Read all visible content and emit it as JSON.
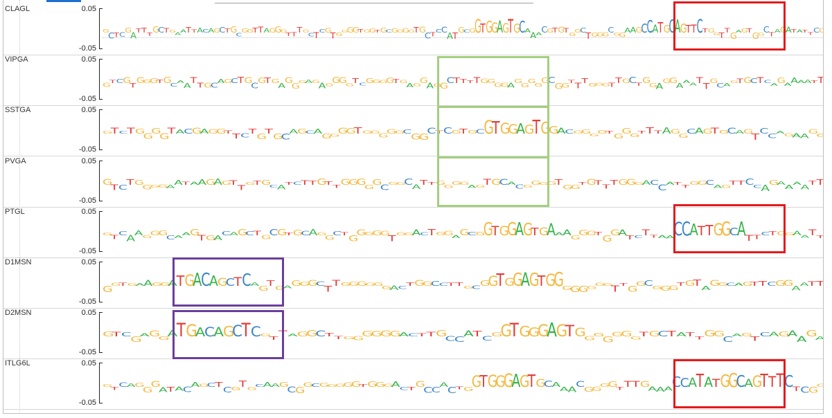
{
  "chart_data": {
    "type": "sequence-logo",
    "y_tick_top": "0.05",
    "y_tick_bottom": "-0.05",
    "ylim": [
      -0.05,
      0.05
    ],
    "nucleotide_colors": {
      "A": "#35b34a",
      "C": "#3a84c9",
      "G": "#f4b942",
      "T": "#e53935"
    },
    "tracks": [
      {
        "name": "CLAGL",
        "sequence": "GCTCGATTTGCTGAATTACAGCTGCGGTTAGGGTTTGCTCGTGGGGTGGTGCGGGGTGCTCCATGCGGTGGAGTGCAAACGTGTGGCTGGGCGGAAGCCATGCAGTTCTGGTTGAGTGGCTAGATATTCG"
      },
      {
        "name": "VIPGA",
        "sequence": "GTCGTGGGTGCAATTGCAGCTGCGTGAGGGAGAGGGGTCGGGGTGAGGAGGCTTTTGGGGAGGGGGCGGTTTGGGTTGCTGGAGGAAATTGCAGTGCTCAGAAAATT"
      },
      {
        "name": "SSTGA",
        "sequence": "GTCTGGGGTACGAGGTTCTGTGCAGCAGGGGTGGGGGCGGCTCGTGCGTGGAGTGGACGGGGTGGGTTTAGGCAGTGCAGTCCAGAAGG"
      },
      {
        "name": "PVGA",
        "sequence": "GTCTGGGGAATAAGAGTTGTGCATCTTGTTGGGGGCGGCATTGGGGAGTGCACGGGGTGGTGTTTGGGACCATTGGCAGTTCCAGAAAATT"
      },
      {
        "name": "PTGL",
        "sequence": "GTCAAGGGCAAGTGACAGCTGCGTGCAGGCTGGGGGTGGACTGGAGCGGTGGAGTGAAAGGGTGGATCTTAACCATTGGCATTCTGGAATT"
      },
      {
        "name": "D1MSN",
        "sequence": "GGTGAAGGATGACAGCTCAGTGAGGGCTTGGGGGGACTGGCCTTGCGGTGGAGTGGGGGGGGTTGGCGGGTGTAGGCAGTTCGGAATT"
      },
      {
        "name": "D2MSN",
        "sequence": "GTCGAGGATGACAGCTCGTTAGGCTTGGGGGGACTTGCCATCGGTGGGAGTGGGGGGGTGCTATTGGCAGTCAGAAGA"
      },
      {
        "name": "ITLG6L",
        "sequence": "GTCAGGGATACAGCTCGTGCAAGCGGCGGGGGTGGGACTGCCACTGGTGGGAGTGCAAACGGGGTTTGAAACCATATGGCAGTTTCTCGG"
      }
    ],
    "highlight_boxes": [
      {
        "group": "red",
        "tracks": [
          "CLAGL"
        ],
        "motif": "CCATGCAGTTC"
      },
      {
        "group": "red",
        "tracks": [
          "PTGL"
        ],
        "motif": "CCATTGGCA"
      },
      {
        "group": "red",
        "tracks": [
          "ITLG6L"
        ],
        "motif": "CCATATGGCAGTTTC"
      },
      {
        "group": "green",
        "tracks": [
          "VIPGA",
          "SSTGA",
          "PVGA"
        ],
        "motif": "GTGGAGTG"
      },
      {
        "group": "purple",
        "tracks": [
          "D1MSN"
        ],
        "motif": "TGACAGCTC"
      },
      {
        "group": "purple",
        "tracks": [
          "D2MSN"
        ],
        "motif": "TGACAGCTC"
      }
    ],
    "box_colors": {
      "red": "#e41a1c",
      "green": "#a3cf7f",
      "purple": "#6a3d9a"
    }
  }
}
